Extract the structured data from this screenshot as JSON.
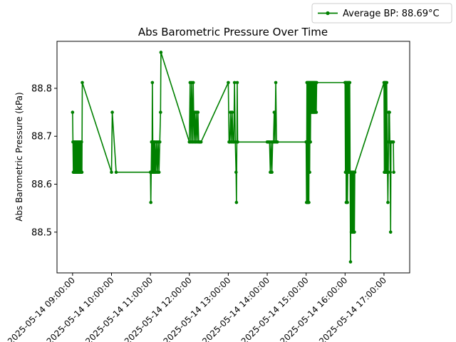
{
  "chart_data": {
    "type": "line",
    "title": "Abs Barometric Pressure Over Time",
    "xlabel": "",
    "ylabel": "Abs Barometric Pressure (kPa)",
    "ylim": [
      88.415,
      88.898
    ],
    "xlim_hours": [
      8.6,
      17.66
    ],
    "legend": {
      "position": "top-right",
      "entries": [
        "Average BP: 88.69°C"
      ]
    },
    "grid": false,
    "x_ticks": [
      {
        "hour": 9,
        "label": "2025-05-14 09:00:00"
      },
      {
        "hour": 10,
        "label": "2025-05-14 10:00:00"
      },
      {
        "hour": 11,
        "label": "2025-05-14 11:00:00"
      },
      {
        "hour": 12,
        "label": "2025-05-14 12:00:00"
      },
      {
        "hour": 13,
        "label": "2025-05-14 13:00:00"
      },
      {
        "hour": 14,
        "label": "2025-05-14 14:00:00"
      },
      {
        "hour": 15,
        "label": "2025-05-14 15:00:00"
      },
      {
        "hour": 16,
        "label": "2025-05-14 16:00:00"
      },
      {
        "hour": 17,
        "label": "2025-05-14 17:00:00"
      }
    ],
    "y_ticks": [
      {
        "value": 88.5,
        "label": "88.5"
      },
      {
        "value": 88.6,
        "label": "88.6"
      },
      {
        "value": 88.7,
        "label": "88.7"
      },
      {
        "value": 88.8,
        "label": "88.8"
      }
    ],
    "series": [
      {
        "name": "Average BP: 88.69°C",
        "color": "#008000",
        "x_hours": [
          9.0,
          9.01,
          9.02,
          9.03,
          9.04,
          9.05,
          9.06,
          9.07,
          9.08,
          9.09,
          9.1,
          9.11,
          9.12,
          9.13,
          9.14,
          9.15,
          9.16,
          9.17,
          9.18,
          9.19,
          9.2,
          9.21,
          9.22,
          9.23,
          9.24,
          9.25,
          10.0,
          10.02,
          10.12,
          11.0,
          11.01,
          11.02,
          11.03,
          11.04,
          11.05,
          11.06,
          11.07,
          11.08,
          11.09,
          11.1,
          11.11,
          11.12,
          11.14,
          11.16,
          11.18,
          11.2,
          11.22,
          11.24,
          11.26,
          11.27,
          12.0,
          12.02,
          12.04,
          12.06,
          12.08,
          12.1,
          12.12,
          12.14,
          12.16,
          12.18,
          12.2,
          12.22,
          12.24,
          12.26,
          12.28,
          12.3,
          13.0,
          13.02,
          13.04,
          13.06,
          13.08,
          13.1,
          13.12,
          13.14,
          13.16,
          13.18,
          13.2,
          13.21,
          13.22,
          13.23,
          13.24,
          14.0,
          14.02,
          14.04,
          14.06,
          14.08,
          14.1,
          14.12,
          14.14,
          14.16,
          14.18,
          14.2,
          14.22,
          14.24,
          14.26,
          15.0,
          15.01,
          15.02,
          15.03,
          15.04,
          15.05,
          15.06,
          15.07,
          15.08,
          15.09,
          15.1,
          15.11,
          15.12,
          15.13,
          15.14,
          15.15,
          15.16,
          15.17,
          15.18,
          15.19,
          15.2,
          15.21,
          15.22,
          15.23,
          15.24,
          15.26,
          15.27,
          16.0,
          16.01,
          16.02,
          16.03,
          16.04,
          16.05,
          16.06,
          16.07,
          16.08,
          16.09,
          16.1,
          16.11,
          16.12,
          16.13,
          16.14,
          16.15,
          16.16,
          16.17,
          16.18,
          16.19,
          16.2,
          16.21,
          16.22,
          16.23,
          16.24,
          16.25,
          17.0,
          17.01,
          17.02,
          17.03,
          17.04,
          17.05,
          17.06,
          17.07,
          17.08,
          17.09,
          17.1,
          17.11,
          17.12,
          17.13,
          17.14,
          17.15,
          17.16,
          17.17,
          17.18,
          17.2,
          17.22,
          17.24,
          17.25
        ],
        "values": [
          88.75,
          88.688,
          88.625,
          88.688,
          88.625,
          88.688,
          88.625,
          88.688,
          88.625,
          88.688,
          88.625,
          88.688,
          88.625,
          88.688,
          88.625,
          88.688,
          88.625,
          88.688,
          88.625,
          88.688,
          88.625,
          88.688,
          88.625,
          88.688,
          88.625,
          88.812,
          88.625,
          88.75,
          88.625,
          88.625,
          88.562,
          88.625,
          88.688,
          88.625,
          88.812,
          88.688,
          88.625,
          88.688,
          88.625,
          88.688,
          88.625,
          88.688,
          88.625,
          88.688,
          88.625,
          88.688,
          88.625,
          88.688,
          88.75,
          88.875,
          88.688,
          88.812,
          88.688,
          88.812,
          88.688,
          88.812,
          88.688,
          88.75,
          88.688,
          88.75,
          88.688,
          88.75,
          88.688,
          88.688,
          88.688,
          88.688,
          88.812,
          88.688,
          88.688,
          88.75,
          88.688,
          88.75,
          88.688,
          88.688,
          88.812,
          88.688,
          88.625,
          88.562,
          88.688,
          88.812,
          88.688,
          88.688,
          88.688,
          88.688,
          88.688,
          88.625,
          88.688,
          88.625,
          88.688,
          88.688,
          88.75,
          88.688,
          88.812,
          88.688,
          88.688,
          88.688,
          88.562,
          88.812,
          88.562,
          88.812,
          88.562,
          88.812,
          88.562,
          88.812,
          88.625,
          88.812,
          88.688,
          88.812,
          88.75,
          88.812,
          88.75,
          88.812,
          88.75,
          88.812,
          88.75,
          88.812,
          88.75,
          88.812,
          88.75,
          88.812,
          88.75,
          88.812,
          88.812,
          88.625,
          88.812,
          88.562,
          88.625,
          88.812,
          88.562,
          88.625,
          88.812,
          88.625,
          88.812,
          88.625,
          88.812,
          88.625,
          88.438,
          88.625,
          88.5,
          88.625,
          88.5,
          88.625,
          88.5,
          88.625,
          88.5,
          88.625,
          88.5,
          88.625,
          88.812,
          88.625,
          88.812,
          88.625,
          88.812,
          88.688,
          88.625,
          88.812,
          88.688,
          88.625,
          88.562,
          88.625,
          88.75,
          88.688,
          88.75,
          88.688,
          88.625,
          88.5,
          88.688,
          88.688,
          88.688,
          88.688,
          88.625
        ]
      }
    ]
  }
}
